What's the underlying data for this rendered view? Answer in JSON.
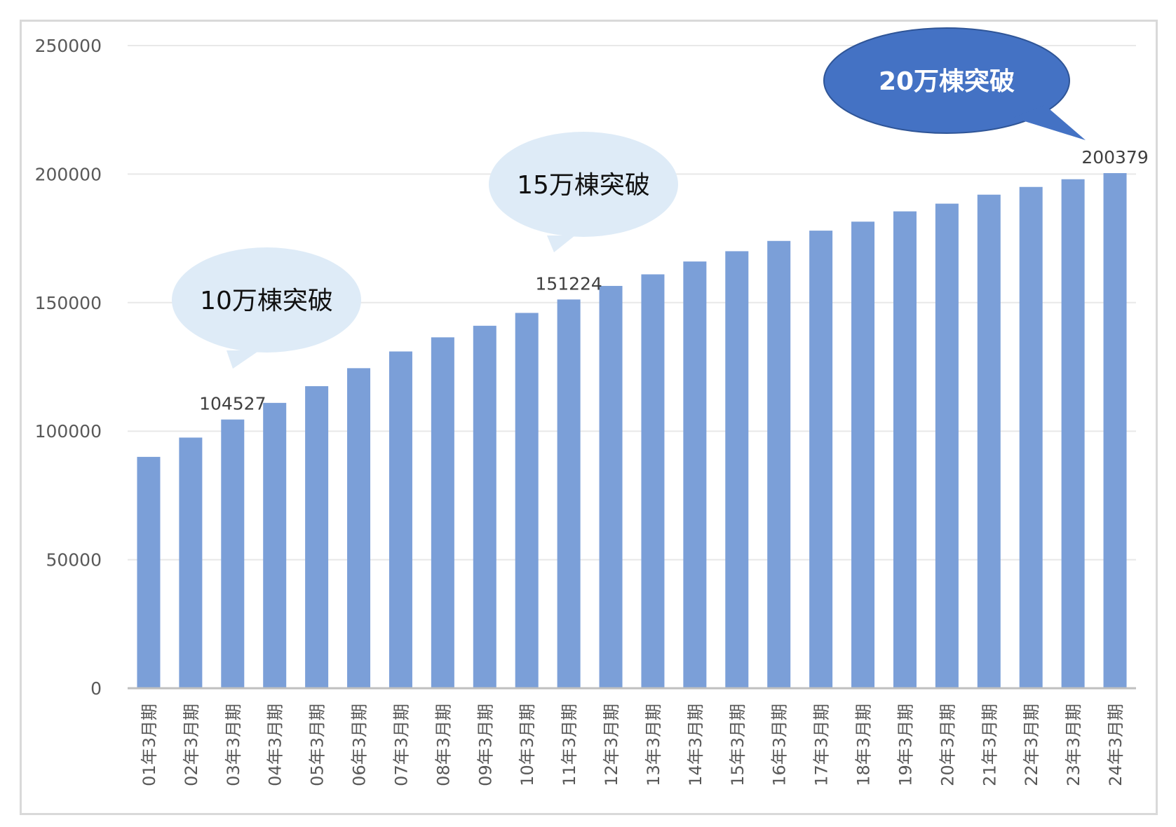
{
  "chart_data": {
    "type": "bar",
    "title": "",
    "xlabel": "",
    "ylabel": "",
    "ylim": [
      0,
      250000
    ],
    "yticks": [
      0,
      50000,
      100000,
      150000,
      200000,
      250000
    ],
    "grid": true,
    "legend": "none",
    "categories": [
      "01年3月期",
      "02年3月期",
      "03年3月期",
      "04年3月期",
      "05年3月期",
      "06年3月期",
      "07年3月期",
      "08年3月期",
      "09年3月期",
      "10年3月期",
      "11年3月期",
      "12年3月期",
      "13年3月期",
      "14年3月期",
      "15年3月期",
      "16年3月期",
      "17年3月期",
      "18年3月期",
      "19年3月期",
      "20年3月期",
      "21年3月期",
      "22年3月期",
      "23年3月期",
      "24年3月期"
    ],
    "series": [
      {
        "values": [
          90000,
          97500,
          104527,
          111000,
          117500,
          124500,
          131000,
          136500,
          141000,
          146000,
          151224,
          156500,
          161000,
          166000,
          170000,
          174000,
          178000,
          181500,
          185500,
          188500,
          192000,
          195000,
          198000,
          200379
        ]
      }
    ],
    "data_labels": [
      {
        "index": 2,
        "text": "104527"
      },
      {
        "index": 10,
        "text": "151224"
      },
      {
        "index": 23,
        "text": "200379"
      }
    ],
    "annotations": [
      {
        "text": "10万棟突破",
        "index": 2
      },
      {
        "text": "15万棟突破",
        "index": 10
      },
      {
        "text": "20万棟突破",
        "index": 23
      }
    ],
    "colors": {
      "bar": "#7b9fd8",
      "grid": "#e8e8e8",
      "axis": "#bfbfbf",
      "callout_light": "#deebf7",
      "callout_dark": "#4472c4"
    }
  }
}
